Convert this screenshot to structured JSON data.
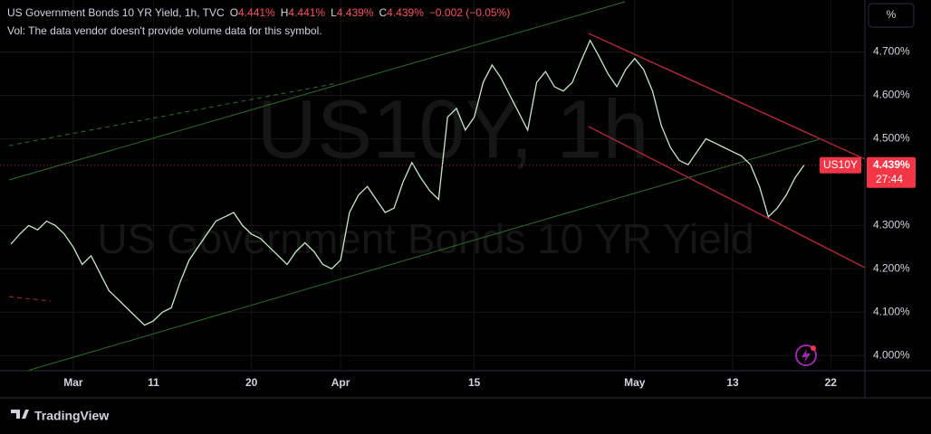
{
  "header": {
    "title": "US Government Bonds 10 YR Yield, 1h, TVC",
    "ohlc": [
      {
        "key": "O",
        "value": "4.441%"
      },
      {
        "key": "H",
        "value": "4.441%"
      },
      {
        "key": "L",
        "value": "4.439%"
      },
      {
        "key": "C",
        "value": "4.439%"
      }
    ],
    "change": "−0.002 (−0.05%)",
    "volume_note": "Vol: The data vendor doesn't provide volume data for this symbol.",
    "watermark_symbol": "US10Y, 1h",
    "watermark_name": "US Government Bonds 10 YR Yield",
    "scale_button": "%",
    "symbol_tag": "US10Y",
    "price_tag": "4.439%",
    "countdown": "27:44",
    "brand": "TradingView"
  },
  "chart_data": {
    "type": "line",
    "categories": [
      null,
      null,
      null,
      null,
      null,
      null,
      null,
      "Mar",
      null,
      null,
      null,
      null,
      null,
      null,
      null,
      null,
      "11",
      null,
      null,
      null,
      null,
      null,
      null,
      null,
      null,
      null,
      null,
      "20",
      null,
      null,
      null,
      null,
      null,
      null,
      null,
      null,
      null,
      "Apr",
      null,
      null,
      null,
      null,
      null,
      null,
      null,
      null,
      null,
      null,
      null,
      null,
      null,
      null,
      "15",
      null,
      null,
      null,
      null,
      null,
      null,
      null,
      null,
      null,
      null,
      null,
      null,
      null,
      null,
      null,
      null,
      null,
      "May",
      null,
      null,
      null,
      null,
      null,
      null,
      null,
      null,
      null,
      null,
      "13",
      null,
      null,
      null,
      null,
      null,
      null,
      null,
      null,
      null,
      null,
      "22",
      null
    ],
    "series": [
      {
        "name": "US10Y",
        "color": "#c8e6c9",
        "values": [
          4.257,
          4.28,
          4.3,
          4.29,
          4.31,
          4.3,
          4.28,
          4.25,
          4.21,
          4.23,
          4.19,
          4.15,
          4.13,
          4.11,
          4.09,
          4.07,
          4.08,
          4.1,
          4.11,
          4.17,
          4.22,
          4.25,
          4.28,
          4.31,
          4.32,
          4.33,
          4.3,
          4.28,
          4.27,
          4.25,
          4.23,
          4.21,
          4.24,
          4.26,
          4.24,
          4.21,
          4.2,
          4.22,
          4.33,
          4.37,
          4.39,
          4.36,
          4.33,
          4.34,
          4.4,
          4.445,
          4.41,
          4.38,
          4.36,
          4.55,
          4.57,
          4.52,
          4.55,
          4.63,
          4.67,
          4.64,
          4.6,
          4.56,
          4.52,
          4.63,
          4.655,
          4.62,
          4.61,
          4.63,
          4.68,
          4.727,
          4.69,
          4.65,
          4.62,
          4.66,
          4.685,
          4.66,
          4.61,
          4.53,
          4.48,
          4.45,
          4.44,
          4.47,
          4.5,
          4.49,
          4.48,
          4.47,
          4.46,
          4.44,
          4.39,
          4.32,
          4.34,
          4.37,
          4.41,
          4.439,
          null,
          null,
          null,
          null
        ]
      }
    ],
    "ylim": [
      3.965,
      4.82
    ],
    "yticks": [
      {
        "value": 4.0,
        "label": "4.000%"
      },
      {
        "value": 4.1,
        "label": "4.100%"
      },
      {
        "value": 4.2,
        "label": "4.200%"
      },
      {
        "value": 4.3,
        "label": "4.300%"
      },
      {
        "value": 4.5,
        "label": "4.500%"
      },
      {
        "value": 4.6,
        "label": "4.600%"
      },
      {
        "value": 4.7,
        "label": "4.700%"
      }
    ],
    "grid": true
  }
}
